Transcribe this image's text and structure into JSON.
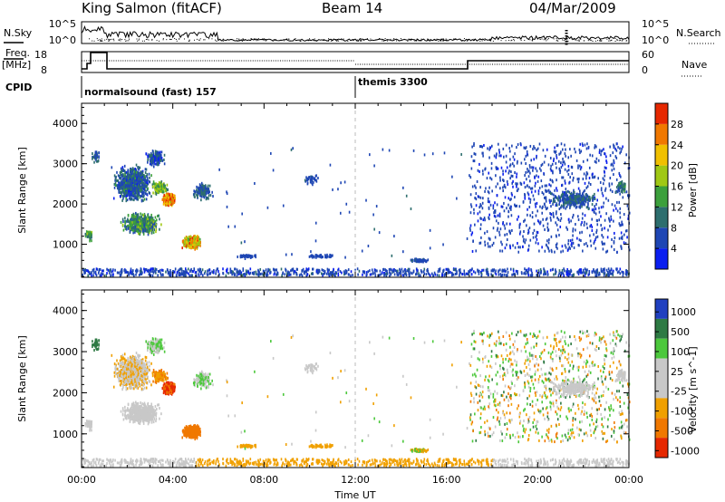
{
  "header": {
    "station": "King Salmon (fitACF)",
    "beam": "Beam 14",
    "date": "04/Mar/2009"
  },
  "status_panels": {
    "nsky_label": "N.Sky",
    "nsearch_label": "N.Search",
    "noise_ticks_left": [
      "10^5",
      "10^0"
    ],
    "noise_ticks_right": [
      "10^5",
      "10^0"
    ],
    "freq_label": [
      "Freq.",
      "[MHz]"
    ],
    "freq_ticks": [
      "18",
      "8"
    ],
    "nave_label": "Nave",
    "nave_ticks": [
      "60",
      "0"
    ],
    "cpid_label": "CPID",
    "cpid_modes": [
      {
        "name": "normalsound (fast) 157",
        "start_hour": 0
      },
      {
        "name": "themis 3300",
        "start_hour": 12
      }
    ]
  },
  "colors": {
    "power_scale": [
      "#0a1ef0",
      "#1e46b4",
      "#2d6e6e",
      "#3ca03c",
      "#a0c814",
      "#f0c000",
      "#f07800",
      "#e62800"
    ],
    "velocity_scale": [
      "#2040c0",
      "#2e7a44",
      "#4cc83c",
      "#c8c8c8",
      "#c8c8c8",
      "#f0a000",
      "#f07800",
      "#e62800"
    ]
  },
  "chart_data": [
    {
      "type": "heatmap",
      "title": "",
      "ylabel": "Slant Range [km]",
      "xlabel": "",
      "xlim": [
        0,
        24
      ],
      "ylim": [
        180,
        4500
      ],
      "y_ticks": [
        "1000",
        "2000",
        "3000",
        "4000"
      ],
      "colorbar": {
        "label": "Power [dB]",
        "range": [
          0,
          30
        ],
        "ticks": [
          "4",
          "8",
          "12",
          "16",
          "20",
          "24",
          "28"
        ]
      },
      "features": [
        {
          "region": "near-range band 00:00–24:00 at 200–400 km",
          "typical_value_dB": 4
        },
        {
          "region": "00:00–06:00 at 800–3500 km",
          "typical_value_dB": 10
        },
        {
          "region": "03:00–05:00 at ~2100 km",
          "typical_value_dB": 28
        },
        {
          "region": "04:00–06:00 at 900–1300 km",
          "typical_value_dB": 22
        },
        {
          "region": "17:00–24:00 at 800–3500 km scattered",
          "typical_value_dB": 4
        }
      ]
    },
    {
      "type": "heatmap",
      "title": "",
      "ylabel": "Slant Range [km]",
      "xlabel": "Time UT",
      "x_ticks": [
        "00:00",
        "04:00",
        "08:00",
        "12:00",
        "16:00",
        "20:00",
        "00:00"
      ],
      "xlim": [
        0,
        24
      ],
      "ylim": [
        180,
        4500
      ],
      "y_ticks": [
        "1000",
        "2000",
        "3000",
        "4000"
      ],
      "colorbar": {
        "label": "Velocity [m s^-1]",
        "range": [
          -1200,
          1200
        ],
        "ticks": [
          "1000",
          "500",
          "100",
          "25",
          "-25",
          "-100",
          "-500",
          "-1000"
        ]
      },
      "features": [
        {
          "region": "00:00–05:00 at 1000–2500 km",
          "typical_value_ms": 0
        },
        {
          "region": "03:30–05:00 at ~2100 km",
          "typical_value_ms": -600
        },
        {
          "region": "04:00–06:00 at 900–1300 km",
          "typical_value_ms": -300
        },
        {
          "region": "near-range band 05:00–18:00 at 200–400 km",
          "typical_value_ms": -100
        },
        {
          "region": "17:00–24:00 scattered 800–3500 km",
          "typical_value_ms": 0
        }
      ]
    }
  ]
}
